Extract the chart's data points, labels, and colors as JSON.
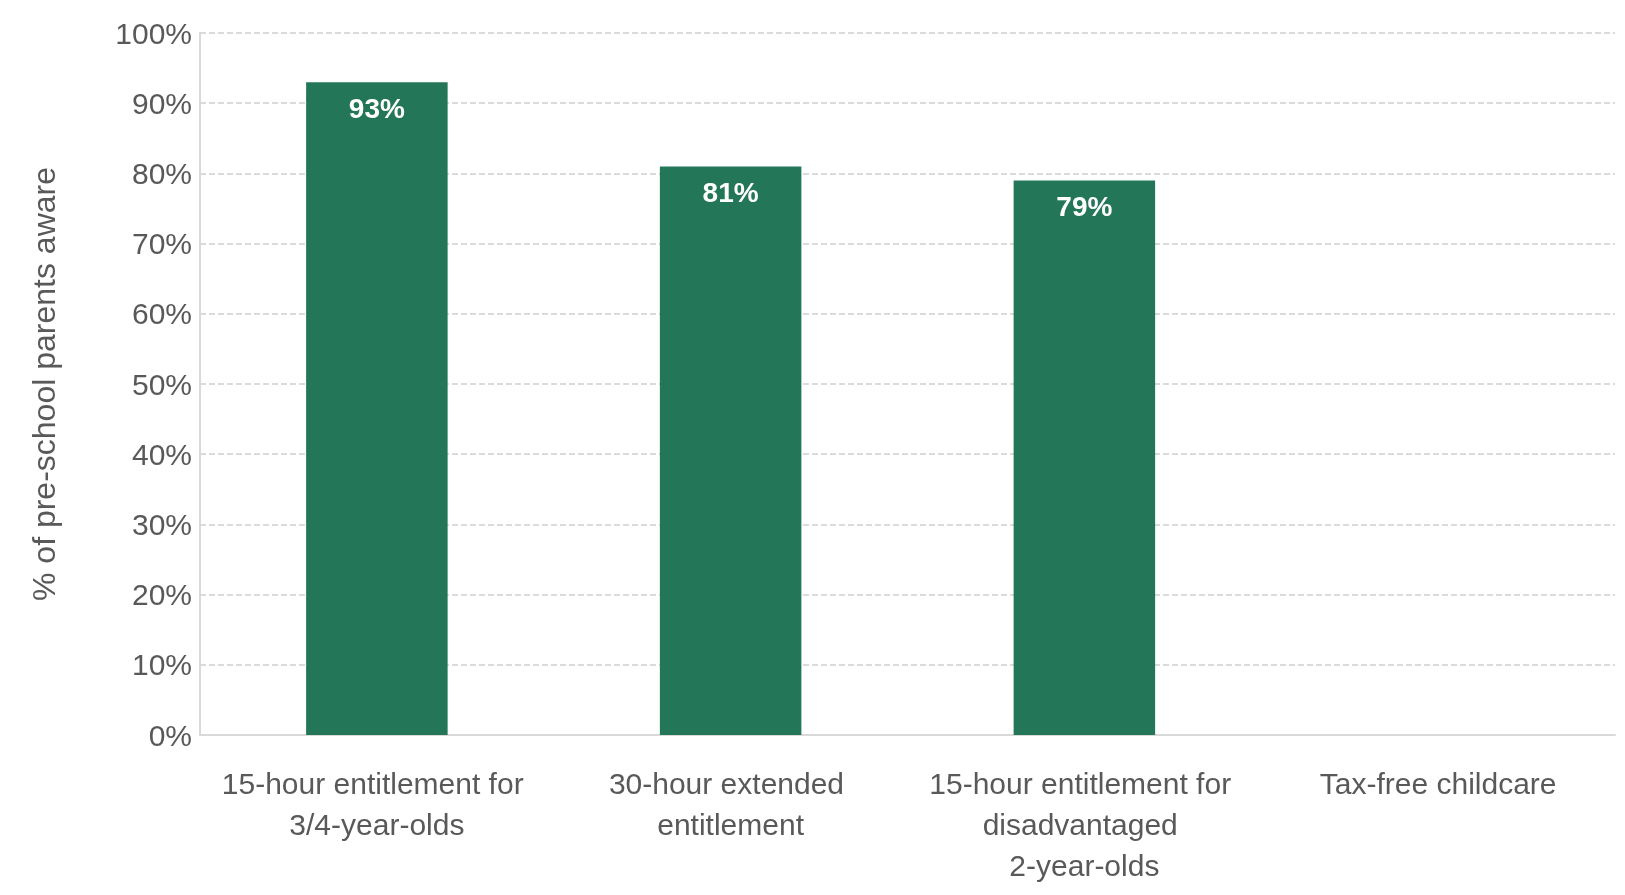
{
  "chart_data": {
    "type": "bar",
    "ylabel": "% of pre-school parents aware",
    "categories": [
      "15-hour entitlement for 3/4-year-olds",
      "30-hour extended entitlement",
      "15-hour entitlement for disadvantaged 2-year-olds",
      "Tax-free childcare"
    ],
    "values": [
      93,
      81,
      79,
      null
    ],
    "value_labels": [
      "93%",
      "81%",
      "79%",
      null
    ],
    "color": "#237657",
    "ylim": [
      0,
      100
    ],
    "yticks": [
      {
        "value": 0,
        "label": "0%"
      },
      {
        "value": 10,
        "label": "10%"
      },
      {
        "value": 20,
        "label": "20%"
      },
      {
        "value": 30,
        "label": "30%"
      },
      {
        "value": 40,
        "label": "40%"
      },
      {
        "value": 50,
        "label": "50%"
      },
      {
        "value": 60,
        "label": "60%"
      },
      {
        "value": 70,
        "label": "70%"
      },
      {
        "value": 80,
        "label": "80%"
      },
      {
        "value": 90,
        "label": "90%"
      },
      {
        "value": 100,
        "label": "100%"
      }
    ],
    "grid": "y"
  }
}
